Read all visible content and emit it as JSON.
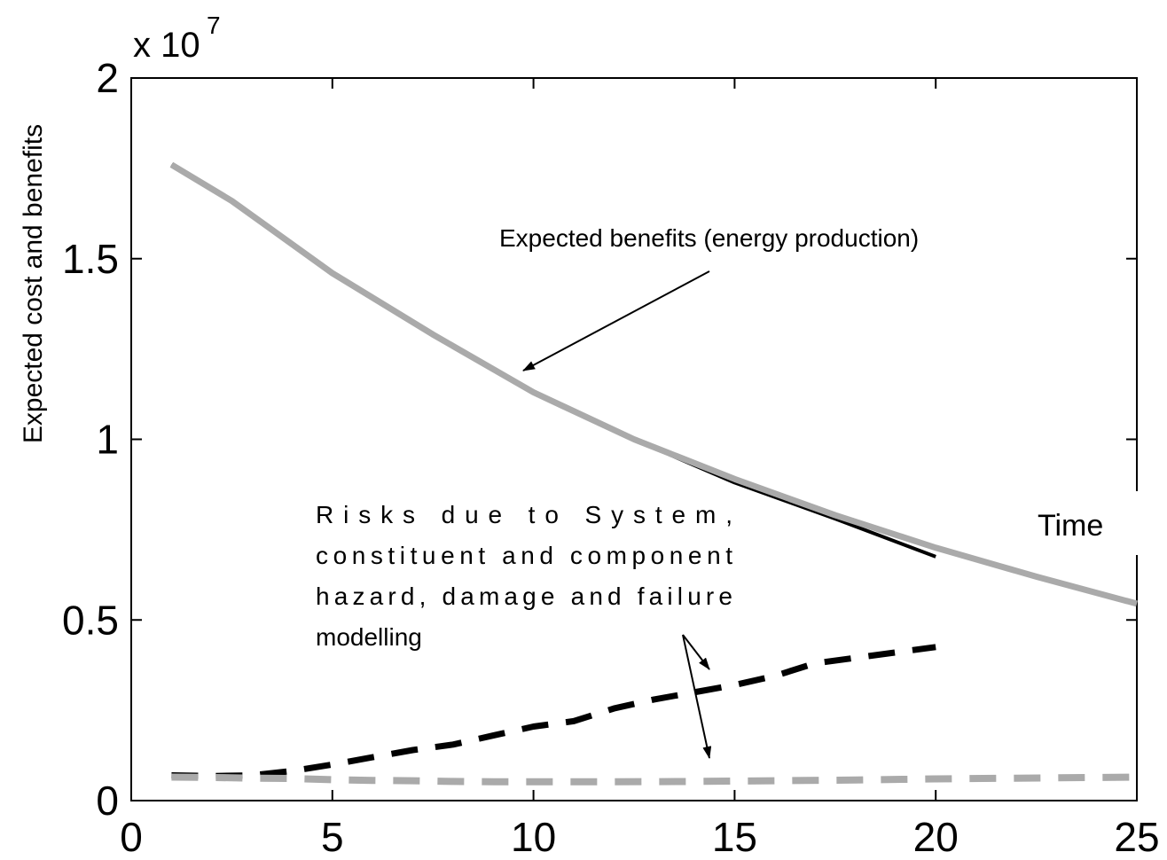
{
  "chart_data": {
    "type": "line",
    "title": "",
    "xlabel": "",
    "ylabel": "Expected cost and benefits",
    "y_multiplier": "x 10",
    "y_multiplier_exponent": "7",
    "xlim": [
      0,
      25
    ],
    "ylim": [
      0,
      2
    ],
    "grid": false,
    "x_ticks": [
      0,
      5,
      10,
      15,
      20,
      25
    ],
    "x_tick_labels": [
      "0",
      "5",
      "10",
      "15",
      "20",
      "25"
    ],
    "y_ticks": [
      0,
      0.5,
      1,
      1.5,
      2
    ],
    "y_tick_labels": [
      "0",
      "0.5",
      "1",
      "1.5",
      "2"
    ],
    "series": [
      {
        "color": "#aaaaaa",
        "style": "solid",
        "x": [
          1,
          2.5,
          5,
          7.5,
          10,
          12.5,
          15,
          17.5,
          20,
          22.5,
          25
        ],
        "y": [
          1.76,
          1.66,
          1.46,
          1.29,
          1.13,
          1.0,
          0.89,
          0.79,
          0.7,
          0.62,
          0.545
        ]
      },
      {
        "color": "#000000",
        "style": "solid",
        "x": [
          1,
          2.5,
          5,
          7.5,
          10,
          12.5,
          15,
          17.5,
          20
        ],
        "y": [
          1.76,
          1.66,
          1.46,
          1.29,
          1.13,
          1.0,
          0.88,
          0.78,
          0.675
        ]
      },
      {
        "color": "#000000",
        "style": "dashed",
        "x": [
          1,
          2,
          3,
          4,
          5,
          6,
          7,
          8,
          9,
          10,
          11,
          12,
          13,
          14,
          15,
          16,
          17,
          18,
          19,
          20
        ],
        "y": [
          0.07,
          0.068,
          0.07,
          0.082,
          0.1,
          0.12,
          0.14,
          0.155,
          0.18,
          0.205,
          0.22,
          0.255,
          0.28,
          0.3,
          0.32,
          0.345,
          0.38,
          0.395,
          0.41,
          0.425
        ]
      },
      {
        "color": "#aaaaaa",
        "style": "dashed",
        "x": [
          1,
          2,
          3,
          4,
          5,
          6,
          7,
          8,
          9,
          10,
          12,
          14,
          16,
          18,
          20,
          22,
          25
        ],
        "y": [
          0.065,
          0.064,
          0.062,
          0.061,
          0.058,
          0.056,
          0.055,
          0.053,
          0.052,
          0.052,
          0.052,
          0.053,
          0.055,
          0.057,
          0.06,
          0.062,
          0.065
        ]
      }
    ],
    "annotations": [
      {
        "text": "Expected benefits (energy production)"
      },
      {
        "lines": [
          "Risks due to System,",
          "constituent and component",
          "hazard, damage and failure",
          "modelling"
        ]
      },
      {
        "text": "Time"
      }
    ]
  }
}
